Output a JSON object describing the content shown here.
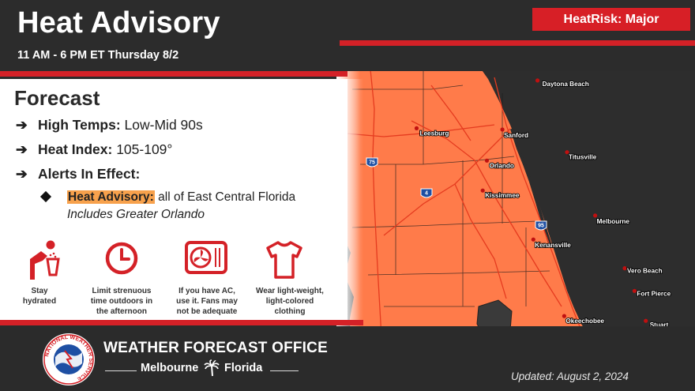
{
  "header": {
    "title": "Heat Advisory",
    "subtitle": "11 AM - 6 PM ET Thursday 8/2",
    "heatrisk_badge": "HeatRisk: Major"
  },
  "forecast": {
    "heading": "Forecast",
    "items": [
      {
        "label": "High Temps:",
        "value": " Low-Mid 90s"
      },
      {
        "label": "Heat Index:",
        "value": " 105-109°"
      },
      {
        "label": "Alerts In Effect:",
        "value": ""
      }
    ],
    "advisory": {
      "tag": "Heat Advisory:",
      "text": " all of East Central Florida",
      "sub": "Includes Greater Orlando"
    }
  },
  "tips": [
    {
      "icon": "hydration-icon",
      "caption_lines": [
        "Stay",
        "hydrated"
      ]
    },
    {
      "icon": "clock-icon",
      "caption_lines": [
        "Limit strenuous",
        "time outdoors in",
        "the afternoon"
      ]
    },
    {
      "icon": "air-conditioner-icon",
      "caption_lines": [
        "If you have AC,",
        "use it. Fans may",
        "not be adequate"
      ]
    },
    {
      "icon": "tshirt-icon",
      "caption_lines": [
        "Wear light-weight,",
        "light-colored",
        "clothing"
      ]
    }
  ],
  "footer": {
    "office": "WEATHER FORECAST OFFICE",
    "city": "Melbourne",
    "state": "Florida",
    "updated": "Updated: August 2, 2024",
    "logo_text": "NATIONAL WEATHER SERVICE"
  },
  "map": {
    "cities": [
      {
        "name": "Daytona Beach",
        "lon": -81.02,
        "lat": 29.21
      },
      {
        "name": "Leesburg",
        "lon": -81.88,
        "lat": 28.81
      },
      {
        "name": "Sanford",
        "lon": -81.27,
        "lat": 28.8
      },
      {
        "name": "Orlando",
        "lon": -81.38,
        "lat": 28.54
      },
      {
        "name": "Titusville",
        "lon": -80.81,
        "lat": 28.61
      },
      {
        "name": "Kissimmee",
        "lon": -81.41,
        "lat": 28.29
      },
      {
        "name": "Melbourne",
        "lon": -80.61,
        "lat": 28.08
      },
      {
        "name": "Kenansville",
        "lon": -81.05,
        "lat": 27.88
      },
      {
        "name": "Vero Beach",
        "lon": -80.4,
        "lat": 27.64
      },
      {
        "name": "Fort Pierce",
        "lon": -80.33,
        "lat": 27.45
      },
      {
        "name": "Okeechobee",
        "lon": -80.83,
        "lat": 27.24
      },
      {
        "name": "Stuart",
        "lon": -80.25,
        "lat": 27.2
      }
    ],
    "interstates": [
      {
        "number": "75"
      },
      {
        "number": "4"
      },
      {
        "number": "95"
      }
    ],
    "colors": {
      "advisory": "#ff7b4a",
      "land": "#ffffff",
      "water": "#2d2d2d"
    }
  }
}
